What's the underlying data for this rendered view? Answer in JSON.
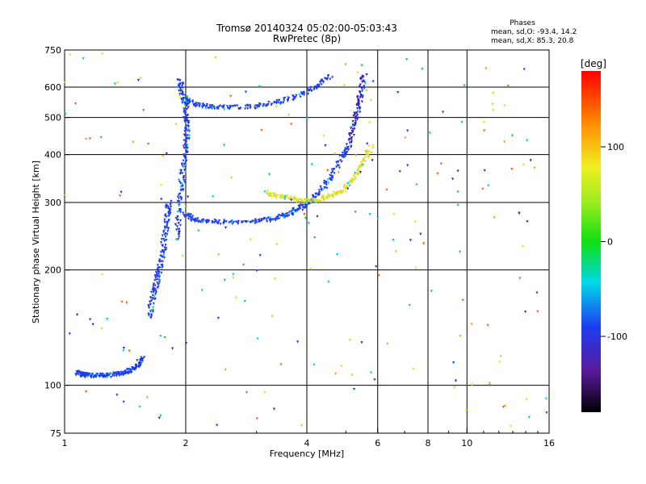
{
  "chart_data": {
    "type": "scatter",
    "title": "Tromsø 20140324 05:02:00-05:03:43",
    "subtitle": "RwPretec (8p)",
    "xlabel": "Frequency [MHz]",
    "ylabel": "Stationary phase Virtual Height [km]",
    "x_scale": "log",
    "y_scale": "log",
    "xlim": [
      1,
      16
    ],
    "ylim": [
      75,
      750
    ],
    "x_ticks": [
      1,
      2,
      4,
      6,
      8,
      10,
      16
    ],
    "y_ticks": [
      75,
      100,
      200,
      300,
      400,
      500,
      600,
      750
    ],
    "grid": true,
    "phases_box": {
      "header": "Phases",
      "line_o": "mean, sd,O: -93.4, 14.2",
      "line_x": "mean, sd,X:  85.3, 20.8"
    },
    "colorbar": {
      "label": "[deg]",
      "range": [
        -180,
        180
      ],
      "ticks": [
        100,
        0,
        -100
      ]
    },
    "traces": [
      {
        "color": "#1e3cf0",
        "points": [
          [
            1.07,
            108
          ],
          [
            1.1,
            107
          ],
          [
            1.14,
            106
          ],
          [
            1.2,
            106
          ],
          [
            1.27,
            106
          ],
          [
            1.35,
            107
          ],
          [
            1.42,
            108
          ],
          [
            1.48,
            110
          ],
          [
            1.52,
            113
          ],
          [
            1.56,
            118
          ]
        ]
      },
      {
        "color": "#1e3cf0",
        "points": [
          [
            1.62,
            150
          ],
          [
            1.66,
            170
          ],
          [
            1.69,
            185
          ],
          [
            1.72,
            200
          ],
          [
            1.75,
            220
          ],
          [
            1.78,
            250
          ],
          [
            1.8,
            280
          ],
          [
            1.82,
            300
          ]
        ]
      },
      {
        "color": "#1e3cf0",
        "points": [
          [
            1.9,
            240
          ],
          [
            1.92,
            280
          ],
          [
            1.95,
            330
          ],
          [
            1.98,
            380
          ],
          [
            2.0,
            420
          ],
          [
            2.02,
            470
          ],
          [
            2.0,
            530
          ],
          [
            1.96,
            580
          ],
          [
            1.93,
            630
          ]
        ]
      },
      {
        "color": "#1e3cf0",
        "points": [
          [
            2.0,
            280
          ],
          [
            2.1,
            270
          ],
          [
            2.3,
            268
          ],
          [
            2.6,
            266
          ],
          [
            3.0,
            268
          ],
          [
            3.3,
            272
          ],
          [
            3.6,
            280
          ],
          [
            3.85,
            290
          ],
          [
            4.05,
            300
          ],
          [
            4.3,
            318
          ],
          [
            4.6,
            350
          ],
          [
            4.9,
            395
          ],
          [
            5.1,
            420
          ]
        ]
      },
      {
        "color": "#1e3cf0",
        "points": [
          [
            2.0,
            560
          ],
          [
            2.1,
            540
          ],
          [
            2.3,
            532
          ],
          [
            2.6,
            530
          ],
          [
            3.0,
            535
          ],
          [
            3.4,
            548
          ],
          [
            3.8,
            570
          ],
          [
            4.2,
            600
          ],
          [
            4.6,
            640
          ]
        ]
      },
      {
        "color": "#e0e020",
        "points": [
          [
            3.15,
            318
          ],
          [
            3.4,
            312
          ],
          [
            3.7,
            306
          ],
          [
            4.0,
            302
          ],
          [
            4.3,
            305
          ],
          [
            4.6,
            312
          ],
          [
            4.9,
            322
          ],
          [
            5.2,
            342
          ],
          [
            5.5,
            375
          ],
          [
            5.8,
            420
          ]
        ]
      },
      {
        "color": "#3020c0",
        "points": [
          [
            5.1,
            430
          ],
          [
            5.25,
            480
          ],
          [
            5.35,
            530
          ],
          [
            5.45,
            580
          ],
          [
            5.55,
            650
          ]
        ]
      }
    ],
    "noise": {
      "count": 220,
      "xlim": [
        1,
        16
      ],
      "ylim": [
        78,
        740
      ]
    }
  }
}
